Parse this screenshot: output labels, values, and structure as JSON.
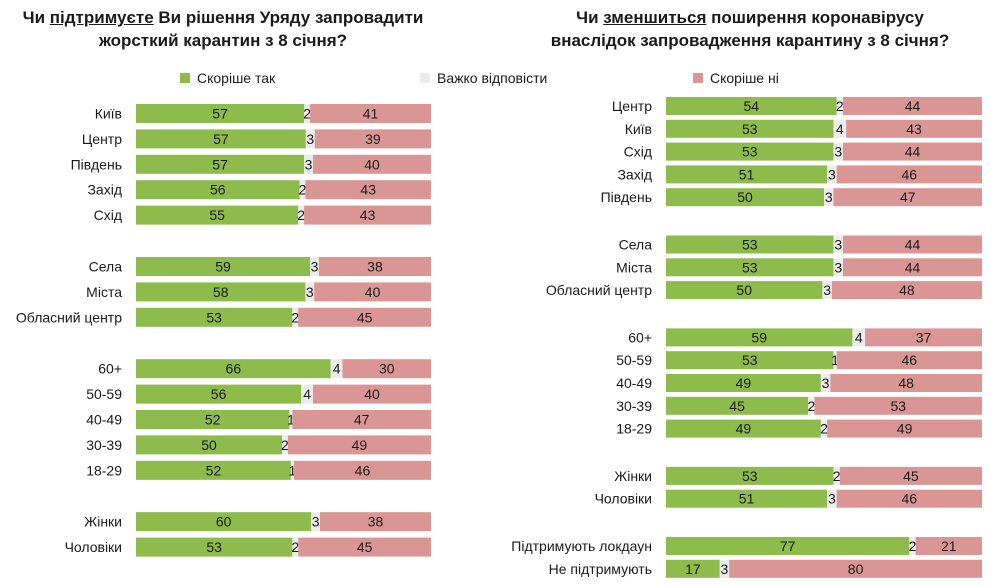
{
  "chart_data": [
    {
      "type": "bar",
      "orientation": "horizontal",
      "stacked": true,
      "title_parts": [
        {
          "text": "Чи ",
          "u": false
        },
        {
          "text": "підтримуєте",
          "u": true
        },
        {
          "text": " Ви рішення Уряду запровадити",
          "u": false
        },
        {
          "text": "\n",
          "u": false
        },
        {
          "text": "жорсткий карантин з 8 січня?",
          "u": false
        }
      ],
      "series_names": [
        "Скоріше так",
        "Важко відповісти",
        "Скоріше ні"
      ],
      "colors": [
        "#8dbb4c",
        "#ececec",
        "#d99694"
      ],
      "groups": [
        [
          {
            "label": "Київ",
            "values": [
              57,
              2,
              41
            ]
          },
          {
            "label": "Центр",
            "values": [
              57,
              3,
              39
            ]
          },
          {
            "label": "Південь",
            "values": [
              57,
              3,
              40
            ]
          },
          {
            "label": "Захід",
            "values": [
              56,
              2,
              43
            ]
          },
          {
            "label": "Схід",
            "values": [
              55,
              2,
              43
            ]
          }
        ],
        [
          {
            "label": "Села",
            "values": [
              59,
              3,
              38
            ]
          },
          {
            "label": "Міста",
            "values": [
              58,
              3,
              40
            ]
          },
          {
            "label": "Обласний центр",
            "values": [
              53,
              2,
              45
            ]
          }
        ],
        [
          {
            "label": "60+",
            "values": [
              66,
              4,
              30
            ]
          },
          {
            "label": "50-59",
            "values": [
              56,
              4,
              40
            ]
          },
          {
            "label": "40-49",
            "values": [
              52,
              1,
              47
            ]
          },
          {
            "label": "30-39",
            "values": [
              50,
              2,
              49
            ]
          },
          {
            "label": "18-29",
            "values": [
              52,
              1,
              46
            ]
          }
        ],
        [
          {
            "label": "Жінки",
            "values": [
              60,
              3,
              38
            ]
          },
          {
            "label": "Чоловіки",
            "values": [
              53,
              2,
              45
            ]
          }
        ]
      ]
    },
    {
      "type": "bar",
      "orientation": "horizontal",
      "stacked": true,
      "title_parts": [
        {
          "text": "Чи ",
          "u": false
        },
        {
          "text": "зменшиться",
          "u": true
        },
        {
          "text": " поширення коронавірусу",
          "u": false
        },
        {
          "text": "\n",
          "u": false
        },
        {
          "text": "внаслідок запровадження карантину з 8 січня?",
          "u": false
        }
      ],
      "series_names": [
        "Скоріше так",
        "Важко відповісти",
        "Скоріше ні"
      ],
      "colors": [
        "#8dbb4c",
        "#ececec",
        "#d99694"
      ],
      "groups": [
        [
          {
            "label": "Центр",
            "values": [
              54,
              2,
              44
            ]
          },
          {
            "label": "Київ",
            "values": [
              53,
              4,
              43
            ]
          },
          {
            "label": "Схід",
            "values": [
              53,
              3,
              44
            ]
          },
          {
            "label": "Захід",
            "values": [
              51,
              3,
              46
            ]
          },
          {
            "label": "Південь",
            "values": [
              50,
              3,
              47
            ]
          }
        ],
        [
          {
            "label": "Села",
            "values": [
              53,
              3,
              44
            ]
          },
          {
            "label": "Міста",
            "values": [
              53,
              3,
              44
            ]
          },
          {
            "label": "Обласний центр",
            "values": [
              50,
              3,
              48
            ]
          }
        ],
        [
          {
            "label": "60+",
            "values": [
              59,
              4,
              37
            ]
          },
          {
            "label": "50-59",
            "values": [
              53,
              1,
              46
            ]
          },
          {
            "label": "40-49",
            "values": [
              49,
              3,
              48
            ]
          },
          {
            "label": "30-39",
            "values": [
              45,
              2,
              53
            ]
          },
          {
            "label": "18-29",
            "values": [
              49,
              2,
              49
            ]
          }
        ],
        [
          {
            "label": "Жінки",
            "values": [
              53,
              2,
              45
            ]
          },
          {
            "label": "Чоловіки",
            "values": [
              51,
              3,
              46
            ]
          }
        ],
        [
          {
            "label": "Підтримують локдаун",
            "values": [
              77,
              2,
              21
            ]
          },
          {
            "label": "Не підтримують",
            "values": [
              17,
              3,
              80
            ]
          }
        ]
      ]
    }
  ],
  "legend": {
    "yes": "Скоріше так",
    "hard": "Важко відповісти",
    "no": "Скоріше ні",
    "colors": {
      "yes": "#8dbb4c",
      "hard": "#ececec",
      "no": "#d99694"
    }
  }
}
